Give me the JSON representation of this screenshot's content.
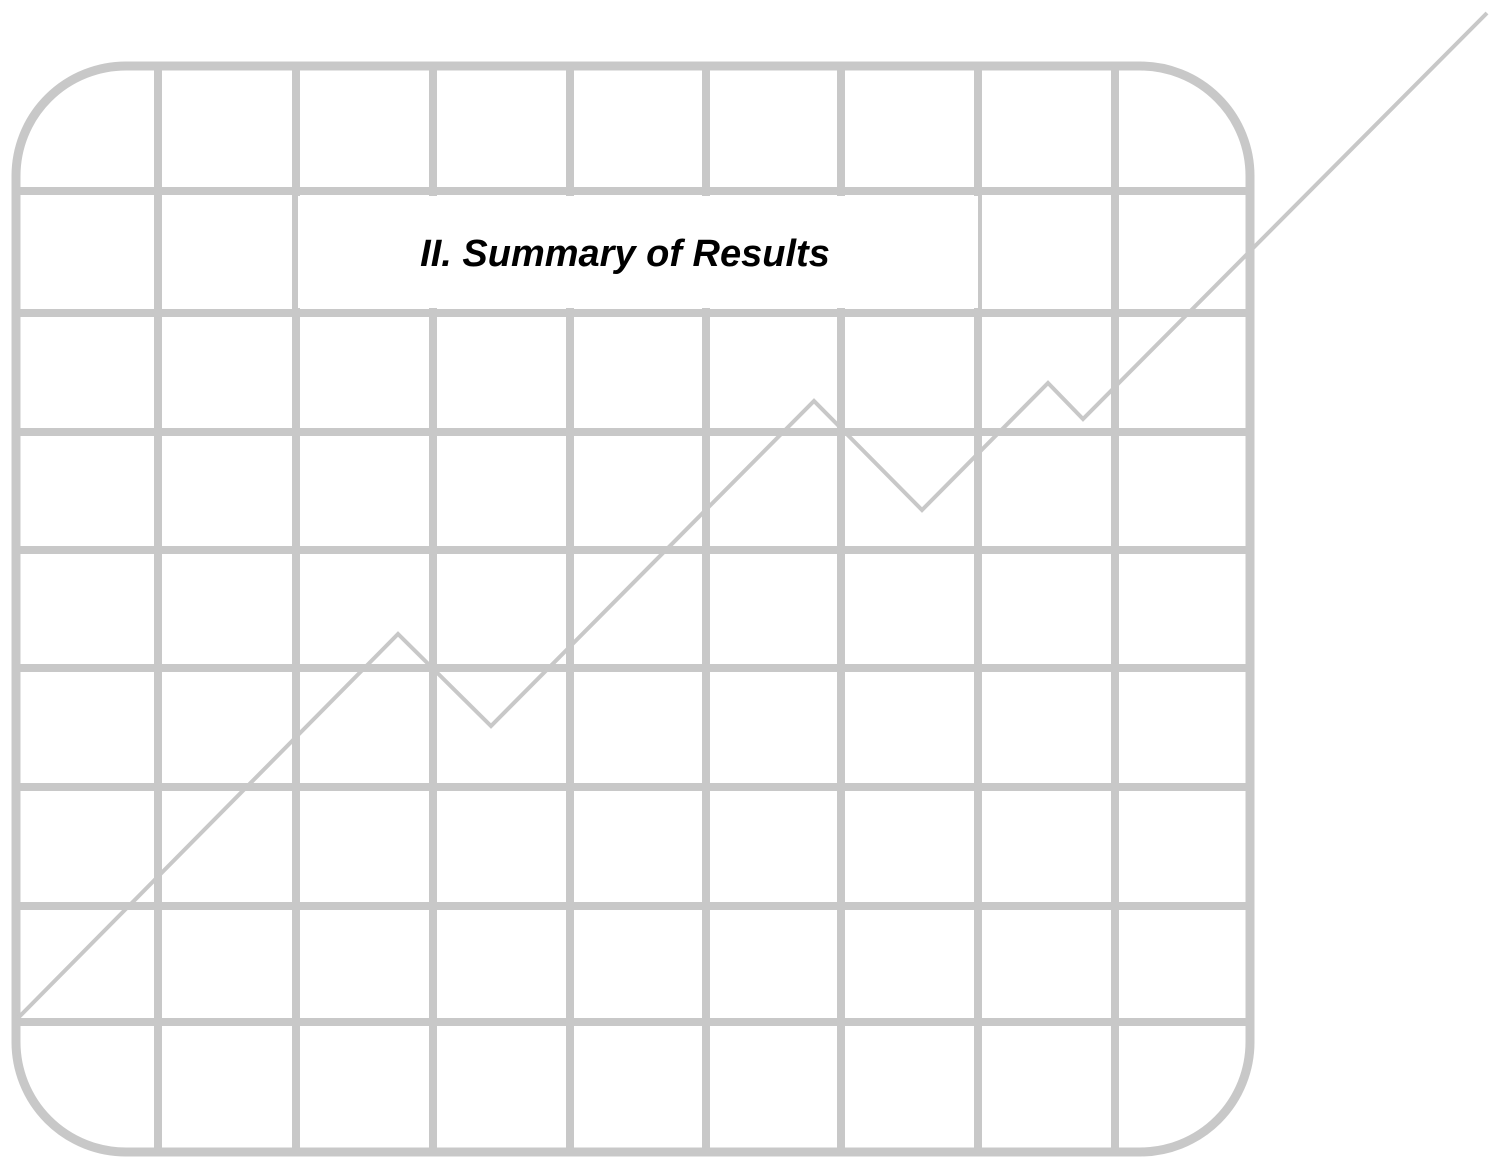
{
  "section": {
    "title": "II. Summary of Results"
  },
  "decor": {
    "line_color": "#c8c8c8",
    "description_icon": "grid-trend-graphic"
  }
}
